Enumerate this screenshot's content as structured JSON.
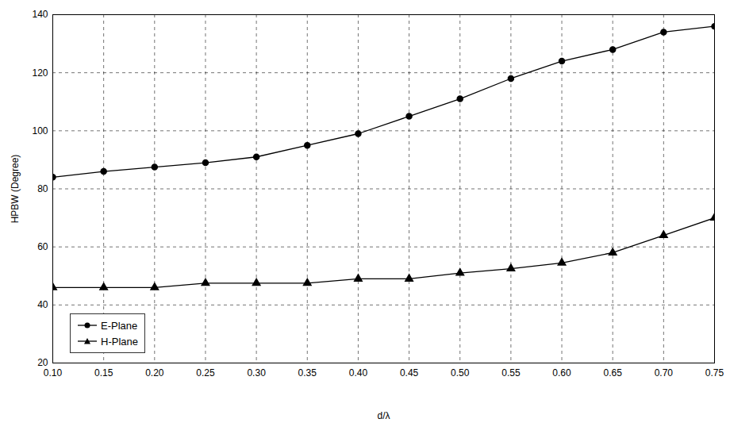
{
  "chart_data": {
    "type": "line",
    "x_label": "d/λ",
    "y_label": "HPBW (Degree)",
    "x": [
      0.1,
      0.15,
      0.2,
      0.25,
      0.3,
      0.35,
      0.4,
      0.45,
      0.5,
      0.55,
      0.6,
      0.65,
      0.7,
      0.75
    ],
    "series": [
      {
        "name": "E-Plane",
        "color": "#000000",
        "marker": "circle",
        "values": [
          84,
          86,
          87.5,
          89,
          91,
          95,
          99,
          105,
          111,
          118,
          124,
          128,
          134,
          136
        ]
      },
      {
        "name": "H-Plane",
        "color": "#000000",
        "marker": "triangle",
        "values": [
          46,
          46,
          46,
          47.5,
          47.5,
          47.5,
          49,
          49,
          51,
          52.5,
          54.5,
          58,
          64,
          70
        ]
      }
    ],
    "xlim": [
      0.1,
      0.75
    ],
    "xticks": [
      {
        "value": 0.1,
        "label": "0.10"
      },
      0.15,
      {
        "value": 0.2,
        "label": "0.20"
      },
      0.25,
      {
        "value": 0.3,
        "label": "0.30"
      },
      0.35,
      {
        "value": 0.4,
        "label": "0.40"
      },
      0.45,
      {
        "value": 0.5,
        "label": "0.50"
      },
      0.55,
      {
        "value": 0.6,
        "label": "0.60"
      },
      0.65,
      {
        "value": 0.7,
        "label": "0.70"
      },
      0.75
    ],
    "ylim": [
      20,
      140
    ],
    "yticks": [
      20,
      40,
      60,
      80,
      100,
      120,
      140
    ],
    "grid": true,
    "legend": "bottom-left"
  }
}
